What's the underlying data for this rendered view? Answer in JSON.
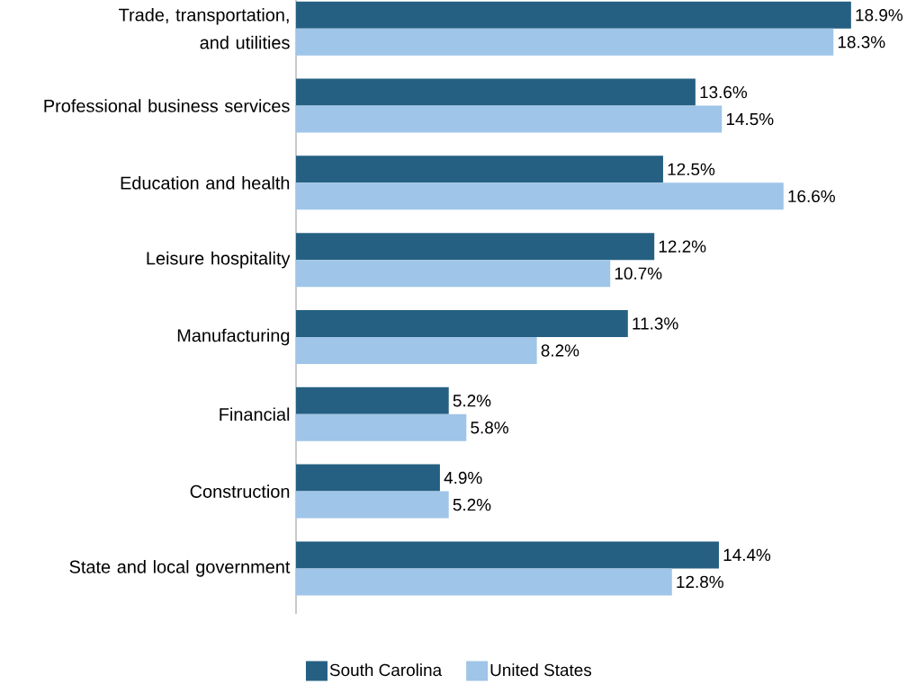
{
  "chart_data": {
    "type": "bar",
    "orientation": "horizontal",
    "categories": [
      "Trade, transportation, and utilities",
      "Professional business services",
      "Education and health",
      "Leisure hospitality",
      "Manufacturing",
      "Financial",
      "Construction",
      "State and local government"
    ],
    "series": [
      {
        "name": "South Carolina",
        "color": "#256082",
        "values": [
          18.9,
          13.6,
          12.5,
          12.2,
          11.3,
          5.2,
          4.9,
          14.4
        ],
        "value_labels": [
          "18.9%",
          "13.6%",
          "12.5%",
          "12.2%",
          "11.3%",
          "5.2%",
          "4.9%",
          "14.4%"
        ]
      },
      {
        "name": "United States",
        "color": "#9fc5e8",
        "values": [
          18.3,
          14.5,
          16.6,
          10.7,
          8.2,
          5.8,
          5.2,
          12.8
        ],
        "value_labels": [
          "18.3%",
          "14.5%",
          "16.6%",
          "10.7%",
          "8.2%",
          "5.8%",
          "5.2%",
          "12.8%"
        ]
      }
    ],
    "tick_labels": "y",
    "legend": "bottom"
  }
}
